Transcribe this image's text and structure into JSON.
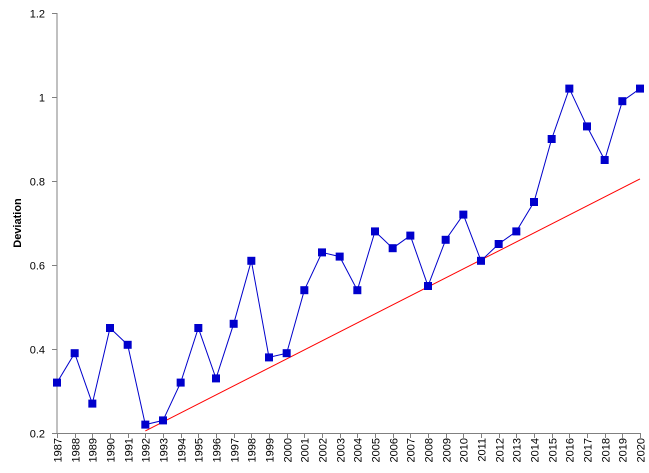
{
  "chart_data": {
    "type": "line",
    "title": "",
    "xlabel": "",
    "ylabel": "Deviation",
    "x": [
      1987,
      1988,
      1989,
      1990,
      1991,
      1992,
      1993,
      1994,
      1995,
      1996,
      1997,
      1998,
      1999,
      2000,
      2001,
      2002,
      2003,
      2004,
      2005,
      2006,
      2007,
      2008,
      2009,
      2010,
      2011,
      2012,
      2013,
      2014,
      2015,
      2016,
      2017,
      2018,
      2019,
      2020
    ],
    "x_tick_labels": [
      "1987",
      "1988",
      "1989",
      "1990",
      "1991",
      "1992",
      "1993",
      "1994",
      "1995",
      "1996",
      "1997",
      "1998",
      "1999",
      "2000",
      "2001",
      "2002",
      "2003",
      "2004",
      "2005",
      "2006",
      "2007",
      "2008",
      "2009",
      "2010",
      "2011",
      "2012",
      "2013",
      "2014",
      "2015",
      "2016",
      "2017",
      "2018",
      "2019",
      "2020"
    ],
    "ylim": [
      0.2,
      1.2
    ],
    "y_ticks": [
      0.2,
      0.4,
      0.6,
      0.8,
      1.0,
      1.2
    ],
    "y_tick_labels": [
      "0.2",
      "0.4",
      "0.6",
      "0.8",
      "1",
      "1.2"
    ],
    "grid": false,
    "legend": "none",
    "series": [
      {
        "color": "#0000cc",
        "marker": "square",
        "values": [
          0.32,
          0.39,
          0.27,
          0.45,
          0.41,
          0.22,
          0.23,
          0.32,
          0.45,
          0.33,
          0.46,
          0.61,
          0.38,
          0.39,
          0.54,
          0.63,
          0.62,
          0.54,
          0.68,
          0.64,
          0.67,
          0.55,
          0.66,
          0.72,
          0.61,
          0.65,
          0.68,
          0.75,
          0.9,
          1.02,
          0.93,
          0.85,
          0.99,
          1.02
        ]
      }
    ],
    "reference_line": {
      "color": "#ff0000",
      "x": [
        1992,
        2020
      ],
      "y": [
        0.205,
        0.805
      ]
    }
  }
}
